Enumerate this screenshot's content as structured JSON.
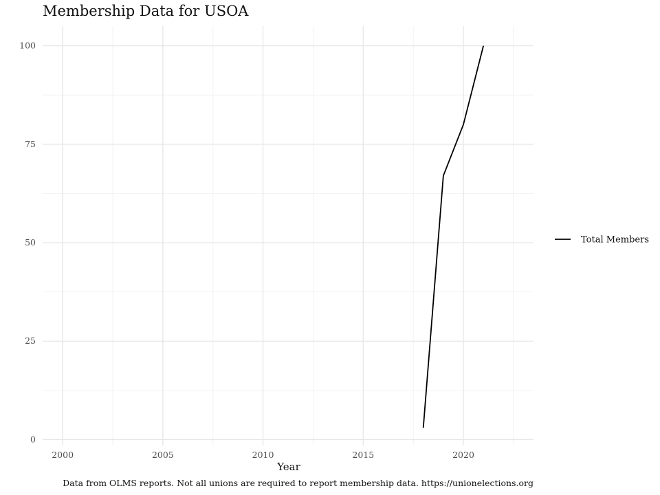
{
  "chart_data": {
    "type": "line",
    "title": "Membership Data for USOA",
    "xlabel": "Year",
    "ylabel": "",
    "xlim": [
      1999,
      2023.5
    ],
    "ylim": [
      -1.5,
      105
    ],
    "x_ticks": [
      2000,
      2005,
      2010,
      2015,
      2020
    ],
    "x_tick_labels": [
      "2000",
      "2005",
      "2010",
      "2015",
      "2020"
    ],
    "y_ticks": [
      0,
      25,
      50,
      75,
      100
    ],
    "y_tick_labels": [
      "0",
      "25",
      "50",
      "75",
      "100"
    ],
    "grid": true,
    "legend_position": "right",
    "series": [
      {
        "name": "Total Members",
        "color": "#000000",
        "x": [
          2018,
          2019,
          2020,
          2021
        ],
        "values": [
          3,
          67,
          80,
          100
        ]
      }
    ],
    "caption": "Data from OLMS reports. Not all unions are required to report membership data. https://unionelections.org"
  }
}
